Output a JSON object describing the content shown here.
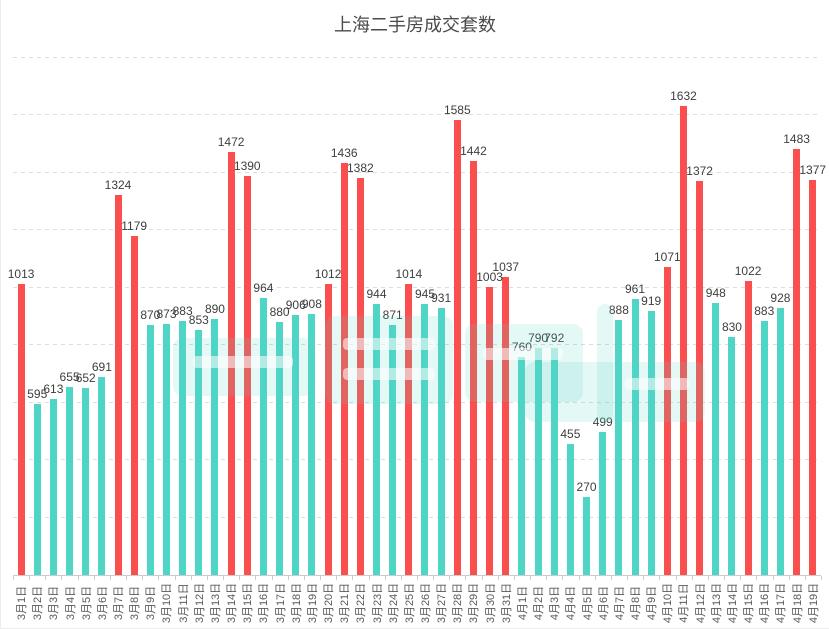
{
  "title": "上海二手房成交套数",
  "chart_data": {
    "type": "bar",
    "title": "上海二手房成交套数",
    "xlabel": "",
    "ylabel": "",
    "ylim": [
      0,
      1800
    ],
    "grid_interval": 200,
    "grid": "dashed-horizontal",
    "legend_position": "none",
    "y_tick_labels_visible": false,
    "value_labels_visible": true,
    "x_label_rotation": -90,
    "palette": {
      "red": "#fb4f4f",
      "teal": "#4fd5c5"
    },
    "categories": [
      "3月1日",
      "3月2日",
      "3月3日",
      "3月4日",
      "3月5日",
      "3月6日",
      "3月7日",
      "3月8日",
      "3月9日",
      "3月10日",
      "3月11日",
      "3月12日",
      "3月13日",
      "3月14日",
      "3月15日",
      "3月16日",
      "3月17日",
      "3月18日",
      "3月19日",
      "3月20日",
      "3月21日",
      "3月22日",
      "3月23日",
      "3月24日",
      "3月25日",
      "3月26日",
      "3月27日",
      "3月28日",
      "3月29日",
      "3月30日",
      "3月31日",
      "4月1日",
      "4月2日",
      "4月3日",
      "4月4日",
      "4月5日",
      "4月6日",
      "4月7日",
      "4月8日",
      "4月9日",
      "4月10日",
      "4月11日",
      "4月12日",
      "4月13日",
      "4月14日",
      "4月15日",
      "4月16日",
      "4月17日",
      "4月18日",
      "4月19日"
    ],
    "values": [
      1013,
      595,
      613,
      655,
      652,
      691,
      1324,
      1179,
      870,
      873,
      883,
      853,
      890,
      1472,
      1390,
      964,
      880,
      906,
      908,
      1012,
      1436,
      1382,
      944,
      871,
      1014,
      945,
      931,
      1585,
      1442,
      1003,
      1037,
      760,
      790,
      792,
      455,
      270,
      499,
      888,
      961,
      919,
      1071,
      1632,
      1372,
      948,
      830,
      1022,
      883,
      928,
      1483,
      1377
    ],
    "bar_colors": [
      "red",
      "teal",
      "teal",
      "teal",
      "teal",
      "teal",
      "red",
      "red",
      "teal",
      "teal",
      "teal",
      "teal",
      "teal",
      "red",
      "red",
      "teal",
      "teal",
      "teal",
      "teal",
      "red",
      "red",
      "red",
      "teal",
      "teal",
      "red",
      "teal",
      "teal",
      "red",
      "red",
      "red",
      "red",
      "teal",
      "teal",
      "teal",
      "teal",
      "teal",
      "teal",
      "teal",
      "teal",
      "teal",
      "red",
      "red",
      "red",
      "teal",
      "teal",
      "red",
      "teal",
      "teal",
      "red",
      "red"
    ]
  }
}
